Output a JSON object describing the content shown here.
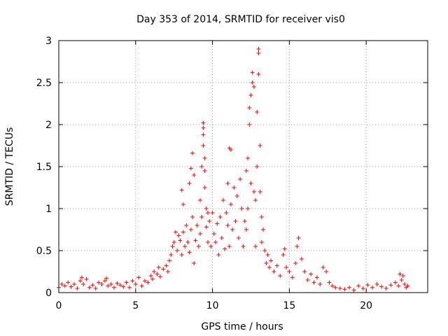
{
  "chart_data": {
    "type": "scatter",
    "title": "Day 353 of 2014, SRMTID for receiver vis0",
    "xlabel": "GPS time / hours",
    "ylabel": "SRMTID / TECUs",
    "xlim": [
      0,
      24
    ],
    "ylim": [
      0,
      3
    ],
    "x_ticks": [
      0,
      5,
      10,
      15,
      20
    ],
    "x_tick_labels": [
      "0",
      "5",
      "10",
      "15",
      "20"
    ],
    "y_ticks": [
      0,
      0.5,
      1,
      1.5,
      2,
      2.5,
      3
    ],
    "y_tick_labels": [
      "0",
      "0.5",
      "1",
      "1.5",
      "2",
      "2.5",
      "3"
    ],
    "grid": true,
    "marker": "+",
    "color": "#ff0000",
    "series": [
      {
        "name": "SRMTID",
        "points": [
          [
            0.0,
            0.06
          ],
          [
            0.2,
            0.1
          ],
          [
            0.4,
            0.08
          ],
          [
            0.6,
            0.12
          ],
          [
            0.8,
            0.07
          ],
          [
            1.0,
            0.1
          ],
          [
            1.2,
            0.05
          ],
          [
            1.4,
            0.14
          ],
          [
            1.5,
            0.18
          ],
          [
            1.6,
            0.1
          ],
          [
            1.8,
            0.16
          ],
          [
            2.0,
            0.06
          ],
          [
            2.2,
            0.09
          ],
          [
            2.4,
            0.05
          ],
          [
            2.6,
            0.12
          ],
          [
            2.8,
            0.1
          ],
          [
            3.0,
            0.14
          ],
          [
            3.1,
            0.17
          ],
          [
            3.2,
            0.08
          ],
          [
            3.4,
            0.1
          ],
          [
            3.6,
            0.06
          ],
          [
            3.8,
            0.11
          ],
          [
            4.0,
            0.09
          ],
          [
            4.2,
            0.07
          ],
          [
            4.4,
            0.12
          ],
          [
            4.6,
            0.06
          ],
          [
            4.8,
            0.14
          ],
          [
            5.0,
            0.1
          ],
          [
            5.2,
            0.18
          ],
          [
            5.4,
            0.08
          ],
          [
            5.6,
            0.14
          ],
          [
            5.8,
            0.12
          ],
          [
            6.0,
            0.2
          ],
          [
            6.1,
            0.16
          ],
          [
            6.2,
            0.25
          ],
          [
            6.4,
            0.22
          ],
          [
            6.5,
            0.3
          ],
          [
            6.6,
            0.19
          ],
          [
            6.8,
            0.28
          ],
          [
            7.0,
            0.32
          ],
          [
            7.1,
            0.25
          ],
          [
            7.2,
            0.38
          ],
          [
            7.3,
            0.45
          ],
          [
            7.4,
            0.55
          ],
          [
            7.5,
            0.6
          ],
          [
            7.6,
            0.72
          ],
          [
            7.7,
            0.5
          ],
          [
            7.8,
            0.68
          ],
          [
            7.9,
            0.62
          ],
          [
            8.0,
            1.22
          ],
          [
            8.0,
            0.45
          ],
          [
            8.1,
            1.05
          ],
          [
            8.1,
            0.72
          ],
          [
            8.2,
            0.55
          ],
          [
            8.3,
            0.8
          ],
          [
            8.4,
            0.6
          ],
          [
            8.5,
            1.3
          ],
          [
            8.5,
            0.48
          ],
          [
            8.6,
            1.48
          ],
          [
            8.6,
            0.75
          ],
          [
            8.7,
            1.66
          ],
          [
            8.7,
            0.9
          ],
          [
            8.8,
            1.4
          ],
          [
            8.8,
            0.35
          ],
          [
            8.9,
            0.62
          ],
          [
            9.0,
            0.8
          ],
          [
            9.1,
            0.55
          ],
          [
            9.2,
            1.1
          ],
          [
            9.2,
            0.7
          ],
          [
            9.3,
            1.5
          ],
          [
            9.3,
            0.9
          ],
          [
            9.4,
            2.02
          ],
          [
            9.4,
            1.96
          ],
          [
            9.4,
            1.88
          ],
          [
            9.4,
            1.75
          ],
          [
            9.5,
            1.6
          ],
          [
            9.5,
            1.45
          ],
          [
            9.5,
            1.25
          ],
          [
            9.6,
            1.0
          ],
          [
            9.6,
            0.78
          ],
          [
            9.7,
            0.95
          ],
          [
            9.7,
            0.6
          ],
          [
            9.8,
            0.85
          ],
          [
            9.9,
            0.55
          ],
          [
            10.0,
            0.95
          ],
          [
            10.1,
            0.7
          ],
          [
            10.2,
            0.6
          ],
          [
            10.3,
            0.82
          ],
          [
            10.4,
            0.45
          ],
          [
            10.5,
            0.9
          ],
          [
            10.6,
            0.65
          ],
          [
            10.7,
            1.1
          ],
          [
            10.8,
            0.52
          ],
          [
            10.9,
            0.95
          ],
          [
            11.0,
            1.3
          ],
          [
            11.0,
            0.8
          ],
          [
            11.1,
            0.55
          ],
          [
            11.1,
            1.72
          ],
          [
            11.2,
            1.7
          ],
          [
            11.2,
            1.05
          ],
          [
            11.3,
            0.75
          ],
          [
            11.4,
            1.25
          ],
          [
            11.5,
            0.85
          ],
          [
            11.6,
            1.15
          ],
          [
            11.7,
            0.65
          ],
          [
            11.8,
            1.35
          ],
          [
            11.9,
            1.0
          ],
          [
            12.0,
            0.55
          ],
          [
            12.1,
            0.85
          ],
          [
            12.2,
            1.45
          ],
          [
            12.2,
            0.75
          ],
          [
            12.3,
            1.6
          ],
          [
            12.3,
            1.0
          ],
          [
            12.4,
            2.0
          ],
          [
            12.4,
            2.2
          ],
          [
            12.5,
            2.35
          ],
          [
            12.5,
            1.3
          ],
          [
            12.6,
            2.62
          ],
          [
            12.6,
            2.5
          ],
          [
            12.7,
            2.45
          ],
          [
            12.7,
            1.2
          ],
          [
            12.8,
            1.1
          ],
          [
            12.8,
            0.55
          ],
          [
            12.9,
            2.15
          ],
          [
            12.9,
            1.5
          ],
          [
            13.0,
            2.9
          ],
          [
            13.0,
            2.85
          ],
          [
            13.0,
            2.6
          ],
          [
            13.1,
            1.75
          ],
          [
            13.1,
            1.2
          ],
          [
            13.2,
            0.9
          ],
          [
            13.2,
            0.6
          ],
          [
            13.3,
            0.75
          ],
          [
            13.4,
            0.5
          ],
          [
            13.5,
            0.35
          ],
          [
            13.6,
            0.45
          ],
          [
            13.7,
            0.3
          ],
          [
            13.8,
            0.38
          ],
          [
            14.0,
            0.25
          ],
          [
            14.2,
            0.32
          ],
          [
            14.4,
            0.2
          ],
          [
            14.6,
            0.45
          ],
          [
            14.7,
            0.52
          ],
          [
            14.8,
            0.3
          ],
          [
            15.0,
            0.25
          ],
          [
            15.2,
            0.18
          ],
          [
            15.4,
            0.35
          ],
          [
            15.5,
            0.55
          ],
          [
            15.6,
            0.65
          ],
          [
            15.8,
            0.4
          ],
          [
            16.0,
            0.25
          ],
          [
            16.2,
            0.15
          ],
          [
            16.4,
            0.22
          ],
          [
            16.6,
            0.12
          ],
          [
            16.8,
            0.18
          ],
          [
            17.0,
            0.1
          ],
          [
            17.2,
            0.3
          ],
          [
            17.4,
            0.25
          ],
          [
            17.6,
            0.12
          ],
          [
            17.8,
            0.08
          ],
          [
            18.0,
            0.06
          ],
          [
            18.3,
            0.05
          ],
          [
            18.6,
            0.04
          ],
          [
            18.9,
            0.06
          ],
          [
            19.2,
            0.03
          ],
          [
            19.5,
            0.08
          ],
          [
            19.8,
            0.05
          ],
          [
            20.1,
            0.09
          ],
          [
            20.4,
            0.06
          ],
          [
            20.7,
            0.1
          ],
          [
            21.0,
            0.07
          ],
          [
            21.3,
            0.05
          ],
          [
            21.6,
            0.09
          ],
          [
            21.9,
            0.12
          ],
          [
            22.1,
            0.08
          ],
          [
            22.2,
            0.22
          ],
          [
            22.3,
            0.15
          ],
          [
            22.4,
            0.2
          ],
          [
            22.5,
            0.1
          ],
          [
            22.6,
            0.06
          ],
          [
            22.7,
            0.08
          ]
        ]
      }
    ]
  }
}
